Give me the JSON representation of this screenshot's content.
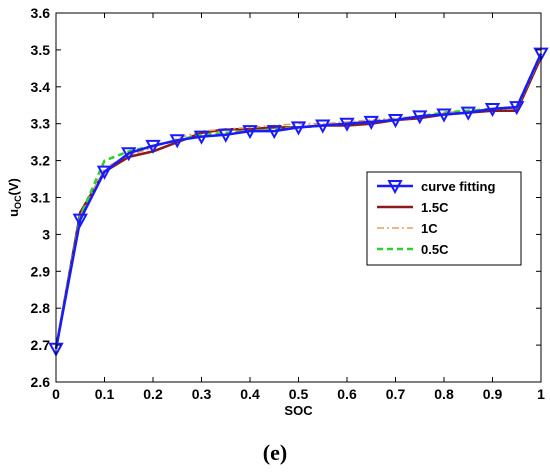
{
  "caption": "(e)",
  "chart_data": {
    "type": "line",
    "xlabel": "SOC",
    "ylabel_main": "u",
    "ylabel_sub": "OC",
    "ylabel_unit": "(V)",
    "xlim": [
      0,
      1
    ],
    "ylim": [
      2.6,
      3.6
    ],
    "xticks": [
      0,
      0.1,
      0.2,
      0.3,
      0.4,
      0.5,
      0.6,
      0.7,
      0.8,
      0.9,
      1
    ],
    "yticks": [
      2.6,
      2.7,
      2.8,
      2.9,
      3.0,
      3.1,
      3.2,
      3.3,
      3.4,
      3.5,
      3.6
    ],
    "xtick_labels": [
      "0",
      "0.1",
      "0.2",
      "0.3",
      "0.4",
      "0.5",
      "0.6",
      "0.7",
      "0.8",
      "0.9",
      "1"
    ],
    "ytick_labels": [
      "2.6",
      "2.7",
      "2.8",
      "2.9",
      "3",
      "3.1",
      "3.2",
      "3.3",
      "3.4",
      "3.5",
      "3.6"
    ],
    "grid": false,
    "legend_position": "right",
    "series": [
      {
        "name": "curve fitting",
        "color": "#1a1aff",
        "style": "solid-triangle-down",
        "x": [
          0,
          0.05,
          0.1,
          0.15,
          0.2,
          0.25,
          0.3,
          0.35,
          0.4,
          0.45,
          0.5,
          0.55,
          0.6,
          0.65,
          0.7,
          0.75,
          0.8,
          0.85,
          0.9,
          0.95,
          1
        ],
        "values": [
          2.69,
          3.04,
          3.17,
          3.22,
          3.24,
          3.255,
          3.265,
          3.27,
          3.28,
          3.28,
          3.29,
          3.295,
          3.3,
          3.305,
          3.31,
          3.32,
          3.325,
          3.33,
          3.34,
          3.345,
          3.49
        ]
      },
      {
        "name": "1.5C",
        "color": "#8b1a1a",
        "style": "solid",
        "x": [
          0,
          0.05,
          0.1,
          0.15,
          0.2,
          0.25,
          0.3,
          0.35,
          0.4,
          0.45,
          0.5,
          0.55,
          0.6,
          0.65,
          0.7,
          0.75,
          0.8,
          0.85,
          0.9,
          0.95,
          1
        ],
        "values": [
          2.69,
          3.06,
          3.17,
          3.21,
          3.225,
          3.25,
          3.275,
          3.285,
          3.285,
          3.29,
          3.29,
          3.295,
          3.295,
          3.3,
          3.31,
          3.315,
          3.325,
          3.33,
          3.335,
          3.335,
          3.48
        ]
      },
      {
        "name": "1C",
        "color": "#e0a060",
        "style": "dashdot",
        "x": [
          0,
          0.05,
          0.1,
          0.15,
          0.2,
          0.25,
          0.3,
          0.35,
          0.4,
          0.45,
          0.5,
          0.55,
          0.6,
          0.65,
          0.7,
          0.75,
          0.8,
          0.85,
          0.9,
          0.95,
          1
        ],
        "values": [
          2.69,
          3.05,
          3.18,
          3.215,
          3.235,
          3.26,
          3.28,
          3.285,
          3.29,
          3.295,
          3.3,
          3.3,
          3.305,
          3.31,
          3.315,
          3.32,
          3.33,
          3.335,
          3.34,
          3.34,
          3.485
        ]
      },
      {
        "name": "0.5C",
        "color": "#33cc33",
        "style": "dashed",
        "x": [
          0,
          0.05,
          0.1,
          0.15,
          0.2,
          0.25,
          0.3,
          0.35,
          0.4,
          0.45,
          0.5,
          0.55,
          0.6,
          0.65,
          0.7,
          0.75,
          0.8,
          0.85,
          0.9,
          0.95,
          1
        ],
        "values": [
          2.69,
          3.05,
          3.2,
          3.225,
          3.24,
          3.255,
          3.27,
          3.275,
          3.28,
          3.285,
          3.29,
          3.295,
          3.3,
          3.305,
          3.31,
          3.32,
          3.33,
          3.335,
          3.34,
          3.345,
          3.49
        ]
      }
    ]
  }
}
